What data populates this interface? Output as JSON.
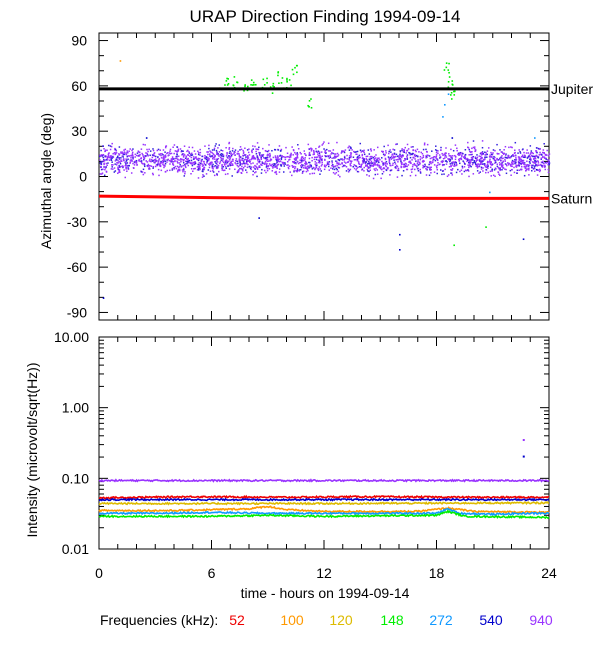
{
  "chart_data": [
    {
      "type": "scatter",
      "title": "URAP Direction Finding  1994-09-14",
      "xlabel": "",
      "ylabel": "Azimuthal angle (deg)",
      "xlim": [
        0,
        24
      ],
      "ylim": [
        -95,
        95
      ],
      "yticks": [
        -90,
        -60,
        -30,
        0,
        30,
        60,
        90
      ],
      "reference_lines": [
        {
          "name": "Jupiter",
          "color": "#000000",
          "points": [
            [
              0,
              58
            ],
            [
              24,
              58
            ]
          ]
        },
        {
          "name": "Saturn",
          "color": "#ff0000",
          "points": [
            [
              0,
              -13
            ],
            [
              6,
              -14
            ],
            [
              10.5,
              -14.5
            ],
            [
              24,
              -14.5
            ]
          ]
        }
      ],
      "series": [
        {
          "frequency_khz": "940",
          "color": "#9933ff",
          "description_points": [
            [
              0.5,
              14
            ],
            [
              1,
              8
            ],
            [
              2,
              16
            ],
            [
              3,
              10
            ],
            [
              4,
              12
            ],
            [
              5,
              6
            ],
            [
              6,
              14
            ],
            [
              7,
              9
            ],
            [
              8,
              15
            ],
            [
              9,
              11
            ],
            [
              10,
              13
            ],
            [
              11,
              7
            ],
            [
              12,
              15
            ],
            [
              13,
              10
            ],
            [
              14,
              12
            ],
            [
              15,
              8
            ],
            [
              16,
              14
            ],
            [
              17,
              9
            ],
            [
              18,
              13
            ],
            [
              19,
              11
            ],
            [
              20,
              15
            ],
            [
              21,
              8
            ],
            [
              22,
              13
            ],
            [
              23,
              10
            ],
            [
              23.8,
              12
            ]
          ]
        },
        {
          "frequency_khz": "540",
          "color": "#0000cc",
          "description_points": [
            [
              0.2,
              -80
            ],
            [
              2.5,
              26
            ],
            [
              8.5,
              -27
            ],
            [
              16,
              -48
            ],
            [
              16,
              -38
            ],
            [
              18.8,
              26
            ],
            [
              22.6,
              -41
            ],
            [
              23.3,
              5
            ]
          ]
        },
        {
          "frequency_khz": "272",
          "color": "#1199ff",
          "description_points": [
            [
              18.3,
              40
            ],
            [
              18.4,
              48
            ],
            [
              18.6,
              55
            ],
            [
              20.8,
              -10
            ],
            [
              23.2,
              26
            ]
          ]
        },
        {
          "frequency_khz": "148",
          "color": "#00ee00",
          "description_points": [
            [
              6.8,
              62
            ],
            [
              7.2,
              63
            ],
            [
              7.8,
              60
            ],
            [
              8.2,
              65
            ],
            [
              8.8,
              62
            ],
            [
              9.2,
              58
            ],
            [
              9.6,
              66
            ],
            [
              10.1,
              62
            ],
            [
              10.4,
              70
            ],
            [
              11.2,
              50
            ],
            [
              18.5,
              72
            ],
            [
              18.7,
              63
            ],
            [
              18.8,
              55
            ],
            [
              18.9,
              -45
            ],
            [
              20.6,
              -33
            ]
          ]
        },
        {
          "frequency_khz": "120",
          "color": "#ddbb00",
          "description_points": [
            [
              6.4,
              59
            ],
            [
              9.8,
              59
            ]
          ]
        },
        {
          "frequency_khz": "100",
          "color": "#ff9900",
          "description_points": [
            [
              1.1,
              77
            ]
          ]
        },
        {
          "frequency_khz": "52",
          "color": "#ee0000",
          "description_points": [
            [
              13,
              -14
            ]
          ]
        }
      ]
    },
    {
      "type": "line",
      "title": "",
      "xlabel": "time - hours on 1994-09-14",
      "ylabel": "Intensity (microvolt/sqrt(Hz))",
      "xlim": [
        0,
        24
      ],
      "xticks": [
        0,
        6,
        12,
        18,
        24
      ],
      "ylim": [
        0.01,
        10
      ],
      "yscale": "log",
      "yticks": [
        "0.01",
        "0.10",
        "1.00",
        "10.00"
      ],
      "series": [
        {
          "frequency_khz": "940",
          "color": "#9933ff",
          "x": [
            0,
            24
          ],
          "y": [
            0.093,
            0.093
          ]
        },
        {
          "frequency_khz": "52",
          "color": "#ee0000",
          "x": [
            0,
            5,
            10,
            14,
            20,
            24
          ],
          "y": [
            0.053,
            0.055,
            0.054,
            0.055,
            0.054,
            0.054
          ]
        },
        {
          "frequency_khz": "540",
          "color": "#0000cc",
          "x": [
            0,
            24
          ],
          "y": [
            0.05,
            0.05
          ]
        },
        {
          "frequency_khz": "120",
          "color": "#ddbb00",
          "x": [
            0,
            12,
            24
          ],
          "y": [
            0.044,
            0.044,
            0.045
          ]
        },
        {
          "frequency_khz": "100",
          "color": "#ff9900",
          "x": [
            0,
            4,
            8,
            9,
            10,
            12,
            17,
            18.6,
            20,
            24
          ],
          "y": [
            0.035,
            0.035,
            0.037,
            0.04,
            0.036,
            0.034,
            0.034,
            0.038,
            0.034,
            0.033
          ]
        },
        {
          "frequency_khz": "272",
          "color": "#1199ff",
          "x": [
            0,
            3,
            6,
            9,
            12,
            15,
            18,
            18.6,
            19.2,
            21,
            23,
            24
          ],
          "y": [
            0.032,
            0.032,
            0.033,
            0.032,
            0.032,
            0.032,
            0.032,
            0.037,
            0.032,
            0.031,
            0.032,
            0.032
          ]
        },
        {
          "frequency_khz": "148",
          "color": "#00ee00",
          "x": [
            0,
            6,
            9,
            12,
            18,
            18.6,
            19.5,
            24
          ],
          "y": [
            0.029,
            0.029,
            0.03,
            0.029,
            0.03,
            0.034,
            0.029,
            0.028
          ]
        },
        {
          "frequency_khz": "540",
          "color": "#0000cc",
          "x": [
            22.6
          ],
          "y": [
            0.21
          ]
        },
        {
          "frequency_khz": "940",
          "color": "#9933ff",
          "x": [
            22.6
          ],
          "y": [
            0.36
          ]
        }
      ]
    }
  ],
  "legend": {
    "label": "Frequencies (kHz):",
    "items": [
      {
        "text": "52",
        "color": "#ee0000"
      },
      {
        "text": "100",
        "color": "#ff9900"
      },
      {
        "text": "120",
        "color": "#ddbb00"
      },
      {
        "text": "148",
        "color": "#00ee00"
      },
      {
        "text": "272",
        "color": "#1199ff"
      },
      {
        "text": "540",
        "color": "#0000cc"
      },
      {
        "text": "940",
        "color": "#9933ff"
      }
    ]
  }
}
